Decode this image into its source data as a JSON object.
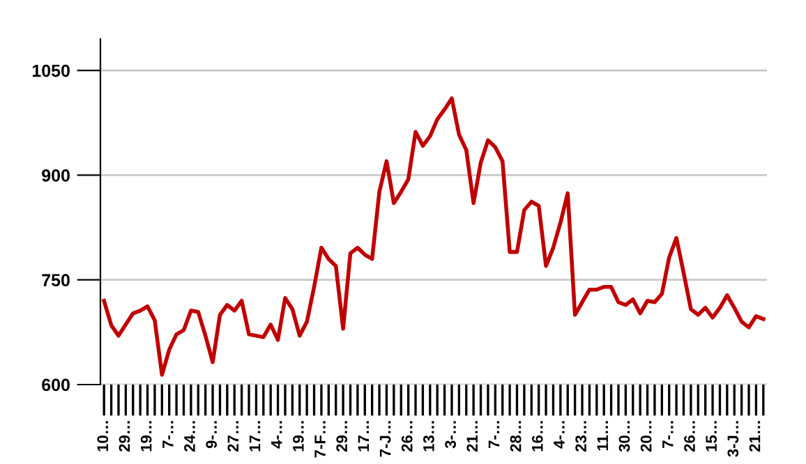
{
  "chart_data": {
    "type": "line",
    "categories": [
      "10…",
      null,
      null,
      "29…",
      null,
      null,
      "19…",
      null,
      null,
      "7-…",
      null,
      null,
      "24…",
      null,
      null,
      "9-…",
      null,
      null,
      "27…",
      null,
      null,
      "17…",
      null,
      null,
      "4-…",
      null,
      null,
      "19…",
      null,
      null,
      "7-F…",
      null,
      null,
      "29…",
      null,
      null,
      "17…",
      null,
      null,
      "7-J…",
      null,
      null,
      "26…",
      null,
      null,
      "13…",
      null,
      null,
      "3-…",
      null,
      null,
      "21…",
      null,
      null,
      "7-…",
      null,
      null,
      "28…",
      null,
      null,
      "16…",
      null,
      null,
      "4-…",
      null,
      null,
      "23…",
      null,
      null,
      "11…",
      null,
      null,
      "30…",
      null,
      null,
      "20…",
      null,
      null,
      "7-…",
      null,
      null,
      "26…",
      null,
      null,
      "15…",
      null,
      null,
      "3-J…",
      null,
      null,
      "21…",
      null
    ],
    "series": [
      {
        "color": "#c00000",
        "values": [
          720,
          685,
          670,
          686,
          702,
          706,
          712,
          692,
          614,
          650,
          672,
          678,
          706,
          704,
          670,
          632,
          700,
          714,
          706,
          720,
          672,
          670,
          668,
          686,
          664,
          724,
          708,
          670,
          690,
          740,
          796,
          780,
          770,
          680,
          788,
          796,
          786,
          780,
          876,
          920,
          860,
          876,
          894,
          962,
          942,
          956,
          980,
          994,
          1010,
          958,
          936,
          860,
          918,
          950,
          940,
          920,
          790,
          790,
          850,
          862,
          856,
          770,
          796,
          832,
          874,
          700,
          718,
          736,
          736,
          740,
          740,
          718,
          714,
          722,
          702,
          720,
          718,
          730,
          782,
          810,
          760,
          708,
          700,
          710,
          696,
          710,
          728,
          710,
          690,
          682,
          698,
          694
        ]
      }
    ],
    "ylim": [
      600,
      1095
    ],
    "yticks": [
      600,
      750,
      900,
      1050
    ],
    "grid": "y",
    "marker": "none",
    "line_style": "solid"
  }
}
